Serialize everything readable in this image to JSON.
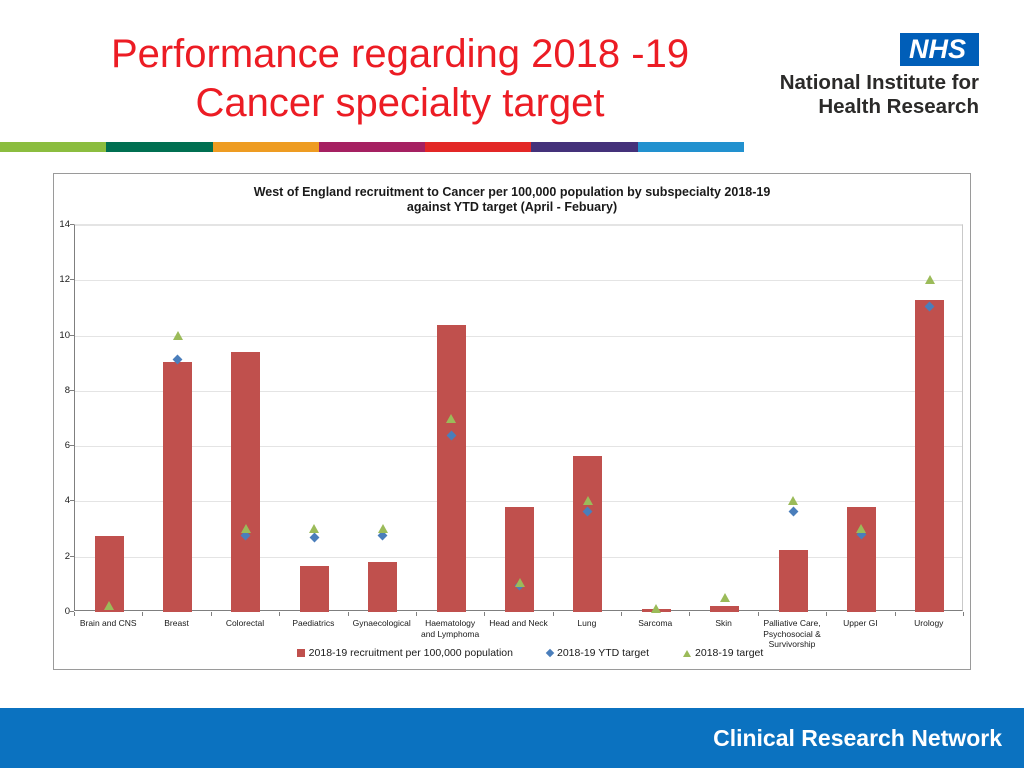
{
  "header": {
    "title_line1": "Performance regarding 2018 -19",
    "title_line2": "Cancer specialty target",
    "nhs_logo_text": "NHS",
    "nhs_org_line1": "National Institute for",
    "nhs_org_line2": "Health Research"
  },
  "stripe_colors": [
    "#8BBD3F",
    "#006F51",
    "#EE9C22",
    "#A52061",
    "#E32726",
    "#44317A",
    "#2291CF"
  ],
  "footer": {
    "label": "Clinical Research Network"
  },
  "chart_data": {
    "type": "bar",
    "title_line1": "West of England recruitment to Cancer per 100,000 population by subspecialty 2018-19",
    "title_line2": "against YTD target (April - Febuary)",
    "ylim": [
      0,
      14
    ],
    "ytick_step": 2,
    "grid": true,
    "legend_position": "bottom-center",
    "categories": [
      {
        "name": "Brain and CNS",
        "lines": [
          "Brain and  CNS"
        ]
      },
      {
        "name": "Breast",
        "lines": [
          "Breast"
        ]
      },
      {
        "name": "Colorectal",
        "lines": [
          "Colorectal"
        ]
      },
      {
        "name": "Paediatrics",
        "lines": [
          "Paediatrics"
        ]
      },
      {
        "name": "Gynaecological",
        "lines": [
          "Gynaecological"
        ]
      },
      {
        "name": "Haematology and Lymphoma",
        "lines": [
          "Haematology",
          "and Lymphoma"
        ]
      },
      {
        "name": "Head and Neck",
        "lines": [
          "Head and Neck"
        ]
      },
      {
        "name": "Lung",
        "lines": [
          "Lung"
        ]
      },
      {
        "name": "Sarcoma",
        "lines": [
          "Sarcoma"
        ]
      },
      {
        "name": "Skin",
        "lines": [
          "Skin"
        ]
      },
      {
        "name": "Palliative Care, Psychosocial & Survivorship",
        "lines": [
          "Palliative Care,",
          "Psychosocial &",
          "Survivorship"
        ]
      },
      {
        "name": "Upper GI",
        "lines": [
          "Upper GI"
        ]
      },
      {
        "name": "Urology",
        "lines": [
          "Urology"
        ]
      }
    ],
    "series": [
      {
        "name": "2018-19 recruitment per 100,000 population",
        "marker": "bar",
        "color": "#C0504D",
        "values": [
          2.75,
          9.05,
          9.4,
          1.65,
          1.8,
          10.4,
          3.8,
          5.65,
          0.1,
          0.2,
          2.25,
          3.8,
          11.3
        ]
      },
      {
        "name": "2018-19 YTD target",
        "marker": "diamond",
        "color": "#4A7EBB",
        "values": [
          null,
          9.15,
          2.75,
          2.7,
          2.75,
          6.4,
          0.95,
          3.65,
          null,
          null,
          3.65,
          2.8,
          11.05
        ]
      },
      {
        "name": "2018-19 target",
        "marker": "triangle",
        "color": "#9BBB59",
        "values": [
          0.2,
          10,
          3,
          3,
          3,
          7,
          1.05,
          4,
          0.12,
          0.5,
          4,
          3,
          12
        ]
      }
    ]
  }
}
